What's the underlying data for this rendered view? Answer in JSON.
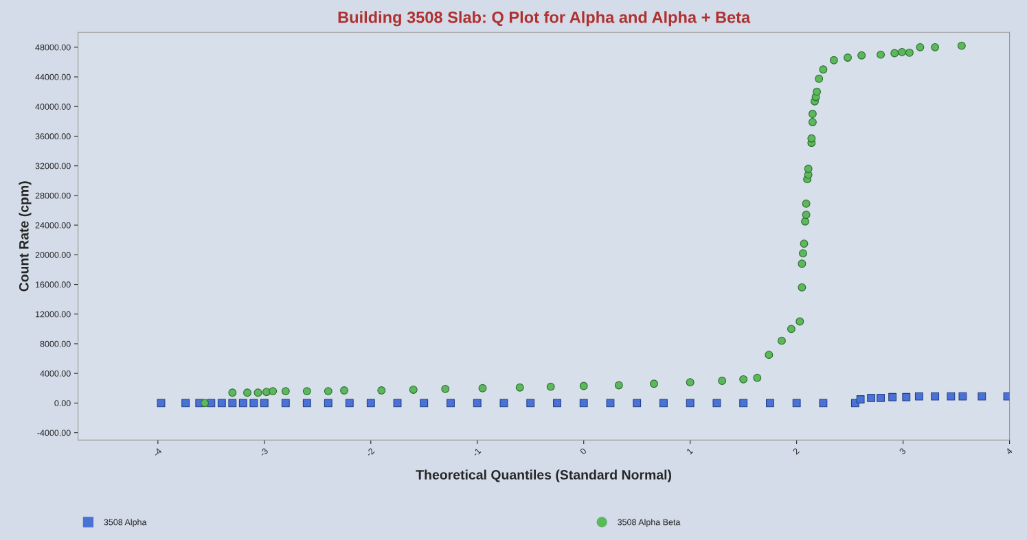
{
  "chart_data": {
    "type": "scatter",
    "title": "Building 3508 Slab: Q Plot for Alpha and Alpha + Beta",
    "xlabel": "Theoretical Quantiles (Standard Normal)",
    "ylabel": "Count Rate (cpm)",
    "xlim": [
      -4.75,
      4
    ],
    "xticks": [
      {
        "value": -4,
        "label": "-4"
      },
      {
        "value": -3,
        "label": "-3"
      },
      {
        "value": -2,
        "label": "-2"
      },
      {
        "value": -1,
        "label": "-1"
      },
      0,
      1,
      2,
      3,
      4
    ],
    "ylim": [
      -5000,
      50000
    ],
    "yticks": [
      {
        "value": -4000,
        "label": "-4000.00"
      },
      {
        "value": 0,
        "label": "0.00"
      },
      {
        "value": 4000,
        "label": "4000.00"
      },
      {
        "value": 8000,
        "label": "8000.00"
      },
      {
        "value": 12000,
        "label": "12000.00"
      },
      {
        "value": 16000,
        "label": "16000.00"
      },
      {
        "value": 20000,
        "label": "20000.00"
      },
      {
        "value": 24000,
        "label": "24000.00"
      },
      {
        "value": 28000,
        "label": "28000.00"
      },
      {
        "value": 32000,
        "label": "32000.00"
      },
      {
        "value": 36000,
        "label": "36000.00"
      },
      {
        "value": 40000,
        "label": "40000.00"
      },
      {
        "value": 44000,
        "label": "44000.00"
      },
      {
        "value": 48000,
        "label": "48000.00"
      }
    ],
    "grid": false,
    "legend": "bottom",
    "series": [
      {
        "name": "3508 Alpha",
        "color": "#4a72d4",
        "marker": "square",
        "x": [
          -3.97,
          -3.74,
          -3.61,
          -3.5,
          -3.4,
          -3.3,
          -3.2,
          -3.1,
          -3.0,
          -2.8,
          -2.6,
          -2.4,
          -2.2,
          -2.0,
          -1.75,
          -1.5,
          -1.25,
          -1.0,
          -0.75,
          -0.5,
          -0.25,
          0.0,
          0.25,
          0.5,
          0.75,
          1.0,
          1.25,
          1.5,
          1.75,
          2.0,
          2.25,
          2.55,
          2.6,
          2.7,
          2.79,
          2.9,
          3.03,
          3.15,
          3.3,
          3.45,
          3.56,
          3.74,
          3.98
        ],
        "values": [
          0,
          0,
          0,
          0,
          0,
          0,
          0,
          0,
          0,
          0,
          0,
          0,
          0,
          0,
          0,
          0,
          0,
          0,
          0,
          0,
          0,
          0,
          0,
          0,
          0,
          0,
          0,
          0,
          0,
          0,
          0,
          0,
          500,
          700,
          700,
          800,
          800,
          900,
          900,
          900,
          900,
          900,
          900
        ]
      },
      {
        "name": "3508 Alpha Beta",
        "color": "#5cb85c",
        "marker": "circle",
        "x": [
          -3.56,
          -3.3,
          -3.16,
          -3.06,
          -2.98,
          -2.92,
          -2.8,
          -2.6,
          -2.4,
          -2.25,
          -1.9,
          -1.6,
          -1.3,
          -0.95,
          -0.6,
          -0.31,
          0.0,
          0.33,
          0.66,
          1.0,
          1.3,
          1.5,
          1.63,
          1.74,
          1.86,
          1.95,
          2.03,
          2.05,
          2.05,
          2.06,
          2.07,
          2.08,
          2.09,
          2.09,
          2.1,
          2.11,
          2.11,
          2.14,
          2.14,
          2.15,
          2.15,
          2.17,
          2.18,
          2.19,
          2.21,
          2.25,
          2.35,
          2.48,
          2.61,
          2.79,
          2.92,
          2.99,
          3.06,
          3.16,
          3.3,
          3.55
        ],
        "values": [
          0,
          1400,
          1400,
          1400,
          1500,
          1600,
          1600,
          1600,
          1600,
          1700,
          1700,
          1800,
          1900,
          2000,
          2100,
          2200,
          2300,
          2400,
          2600,
          2800,
          3000,
          3200,
          3400,
          6500,
          8400,
          10000,
          11000,
          15600,
          18800,
          20200,
          21500,
          24500,
          25400,
          26900,
          30200,
          30800,
          31600,
          35100,
          35700,
          37900,
          39000,
          40700,
          41300,
          42000,
          43750,
          45000,
          46250,
          46600,
          46900,
          47000,
          47200,
          47350,
          47260,
          48000,
          48000,
          48200
        ]
      }
    ]
  }
}
